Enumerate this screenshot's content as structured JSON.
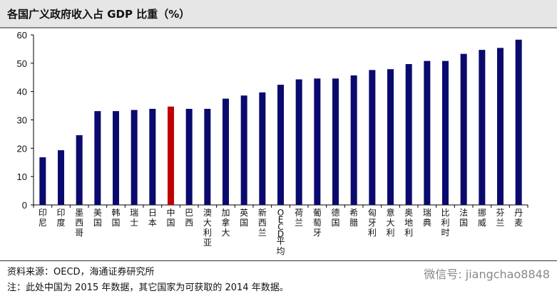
{
  "chart_data": {
    "type": "bar",
    "title": "各国广义政府收入占 GDP 比重（%）",
    "categories": [
      "印尼",
      "印度",
      "墨西哥",
      "美国",
      "韩国",
      "瑞士",
      "日本",
      "中国",
      "巴西",
      "澳大利亚",
      "加拿大",
      "英国",
      "新西兰",
      "OECD平均",
      "荷兰",
      "葡萄牙",
      "德国",
      "希腊",
      "匈牙利",
      "意大利",
      "奥地利",
      "瑞典",
      "比利时",
      "法国",
      "挪威",
      "芬兰",
      "丹麦"
    ],
    "values": [
      16.8,
      19.3,
      24.6,
      33.1,
      33.1,
      33.5,
      33.9,
      34.7,
      33.9,
      33.9,
      37.5,
      38.6,
      39.7,
      42.4,
      44.3,
      44.6,
      44.6,
      45.7,
      47.6,
      47.9,
      49.7,
      50.8,
      50.8,
      53.3,
      54.7,
      55.4,
      58.3
    ],
    "highlight": "中国",
    "colors": {
      "bar": "#0a0a6e",
      "highlight": "#c00000"
    },
    "ylim": [
      0,
      60
    ],
    "yticks": [
      0,
      10,
      20,
      30,
      40,
      50,
      60
    ],
    "grid": false
  },
  "footer": {
    "source": "资料来源：OECD，海通证券研究所",
    "note": "注：此处中国为 2015 年数据，其它国家为可获取的 2014 年数据。",
    "watermark": "微信号: jiangchao8848"
  }
}
